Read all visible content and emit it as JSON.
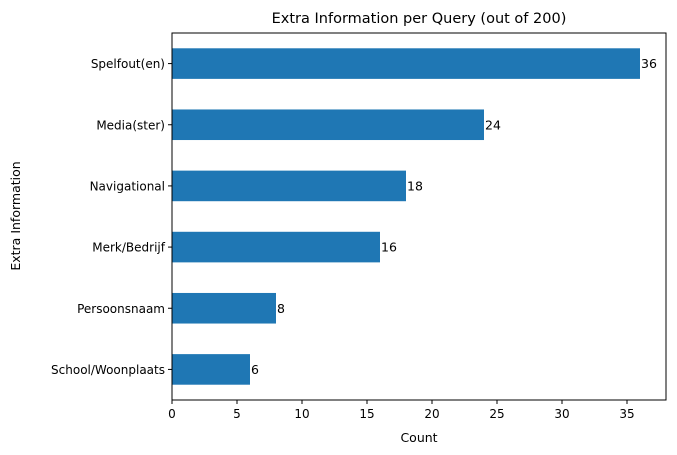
{
  "chart_data": {
    "type": "bar",
    "orientation": "horizontal",
    "title": "Extra Information per Query (out of 200)",
    "xlabel": "Count",
    "ylabel": "Extra Information",
    "categories": [
      "Spelfout(en)",
      "Media(ster)",
      "Navigational",
      "Merk/Bedrijf",
      "Persoonsnaam",
      "School/Woonplaats"
    ],
    "values": [
      36,
      24,
      18,
      16,
      8,
      6
    ],
    "xlim": [
      0,
      38
    ],
    "xticks": [
      0,
      5,
      10,
      15,
      20,
      25,
      30,
      35
    ],
    "grid": false,
    "legend": "none",
    "bar_color": "#1f77b4",
    "data_labels": true
  }
}
